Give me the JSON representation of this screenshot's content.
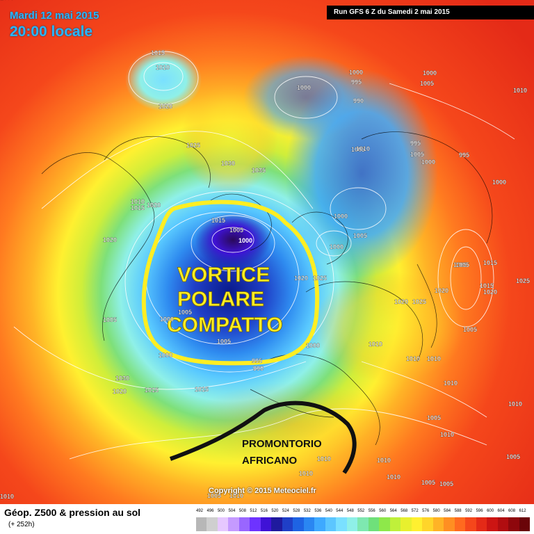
{
  "header": {
    "date": "Mardi 12 mai 2015",
    "time": "20:00 locale",
    "run": "Run GFS 6 Z du Samedi 2 mai 2015"
  },
  "footer": {
    "title": "Géop. Z500 & pression au sol",
    "subtitle": "(+ 252h)",
    "copyright": "Copyright © 2015 Meteociel.fr"
  },
  "annotations": {
    "vortex_lines": [
      "VORTICE",
      "POLARE",
      "COMPATTO"
    ],
    "ridge_lines": [
      "PROMONTORIO",
      "AFRICANO"
    ]
  },
  "scale": {
    "labels": [
      "492",
      "496",
      "500",
      "504",
      "508",
      "512",
      "516",
      "520",
      "524",
      "528",
      "532",
      "536",
      "540",
      "544",
      "548",
      "552",
      "556",
      "560",
      "564",
      "568",
      "572",
      "576",
      "580",
      "584",
      "588",
      "592",
      "596",
      "600",
      "604",
      "608",
      "612"
    ],
    "colors": [
      "#b7b7b7",
      "#cfcfcf",
      "#e6c8ff",
      "#c59aff",
      "#9966ff",
      "#6e33ff",
      "#3f12d6",
      "#1f1a9e",
      "#1f3fc7",
      "#1e63e3",
      "#2a86f2",
      "#3ea9ff",
      "#5cc6ff",
      "#7ae0ff",
      "#8ff0e8",
      "#7ee8b0",
      "#6fe07a",
      "#8ee84a",
      "#bff03a",
      "#e8f02e",
      "#fff030",
      "#ffd52a",
      "#ffb326",
      "#ff8f22",
      "#ff6a1f",
      "#f5471b",
      "#e42a17",
      "#cc1513",
      "#b10d10",
      "#8e070c",
      "#6a0408"
    ]
  },
  "pressure_labels": [
    "1015",
    "1010",
    "1020",
    "1025",
    "1030",
    "1035",
    "1000",
    "995",
    "990",
    "1005",
    "1000",
    "1005",
    "1010",
    "1000",
    "1005",
    "995",
    "1010",
    "1000",
    "995",
    "1000",
    "1005",
    "1010",
    "1010",
    "1015",
    "1020",
    "1020",
    "1015",
    "1005",
    "1015",
    "1000",
    "1010",
    "1000",
    "1005",
    "1000",
    "1020",
    "1025",
    "1010",
    "1005",
    "1000",
    "1005",
    "1000",
    "995",
    "990",
    "1020",
    "1025",
    "1030",
    "1020",
    "1015",
    "1005",
    "1010",
    "1010",
    "1010",
    "1015",
    "1020",
    "1005",
    "1015",
    "1020",
    "1025",
    "1005",
    "1005",
    "1005",
    "1010",
    "1005",
    "1005",
    "1010",
    "1010",
    "1010",
    "1010",
    "1005",
    "1010",
    "1005"
  ],
  "pressure_lows": [
    "1000"
  ]
}
